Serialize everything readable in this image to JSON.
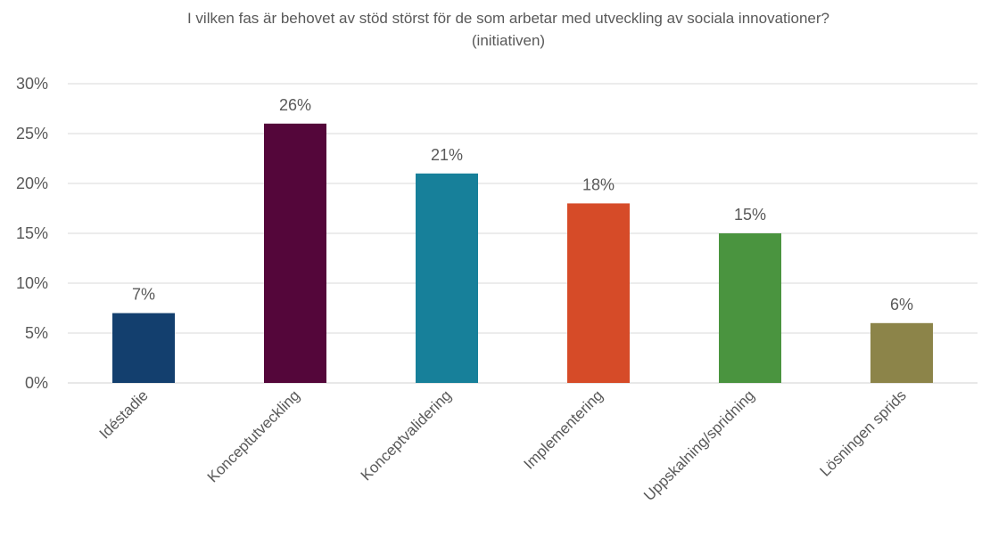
{
  "chart_data": {
    "type": "bar",
    "title": "I vilken fas är behovet av stöd störst för de som arbetar med utveckling av sociala innovationer?",
    "subtitle": "(initiativen)",
    "xlabel": "",
    "ylabel": "",
    "categories": [
      "Idéstadie",
      "Konceptutveckling",
      "Konceptvalidering",
      "Implementering",
      "Uppskalning/spridning",
      "Lösningen sprids"
    ],
    "values": [
      7,
      26,
      21,
      18,
      15,
      6
    ],
    "value_labels": [
      "7%",
      "26%",
      "21%",
      "18%",
      "15%",
      "6%"
    ],
    "colors": [
      "#133f6e",
      "#54063a",
      "#17809a",
      "#d64b28",
      "#4a943f",
      "#8c8449"
    ],
    "ylim": [
      0,
      30
    ],
    "yticks": [
      0,
      5,
      10,
      15,
      20,
      25,
      30
    ],
    "ytick_labels": [
      "0%",
      "5%",
      "10%",
      "15%",
      "20%",
      "25%",
      "30%"
    ],
    "grid": true,
    "legend": "none"
  }
}
